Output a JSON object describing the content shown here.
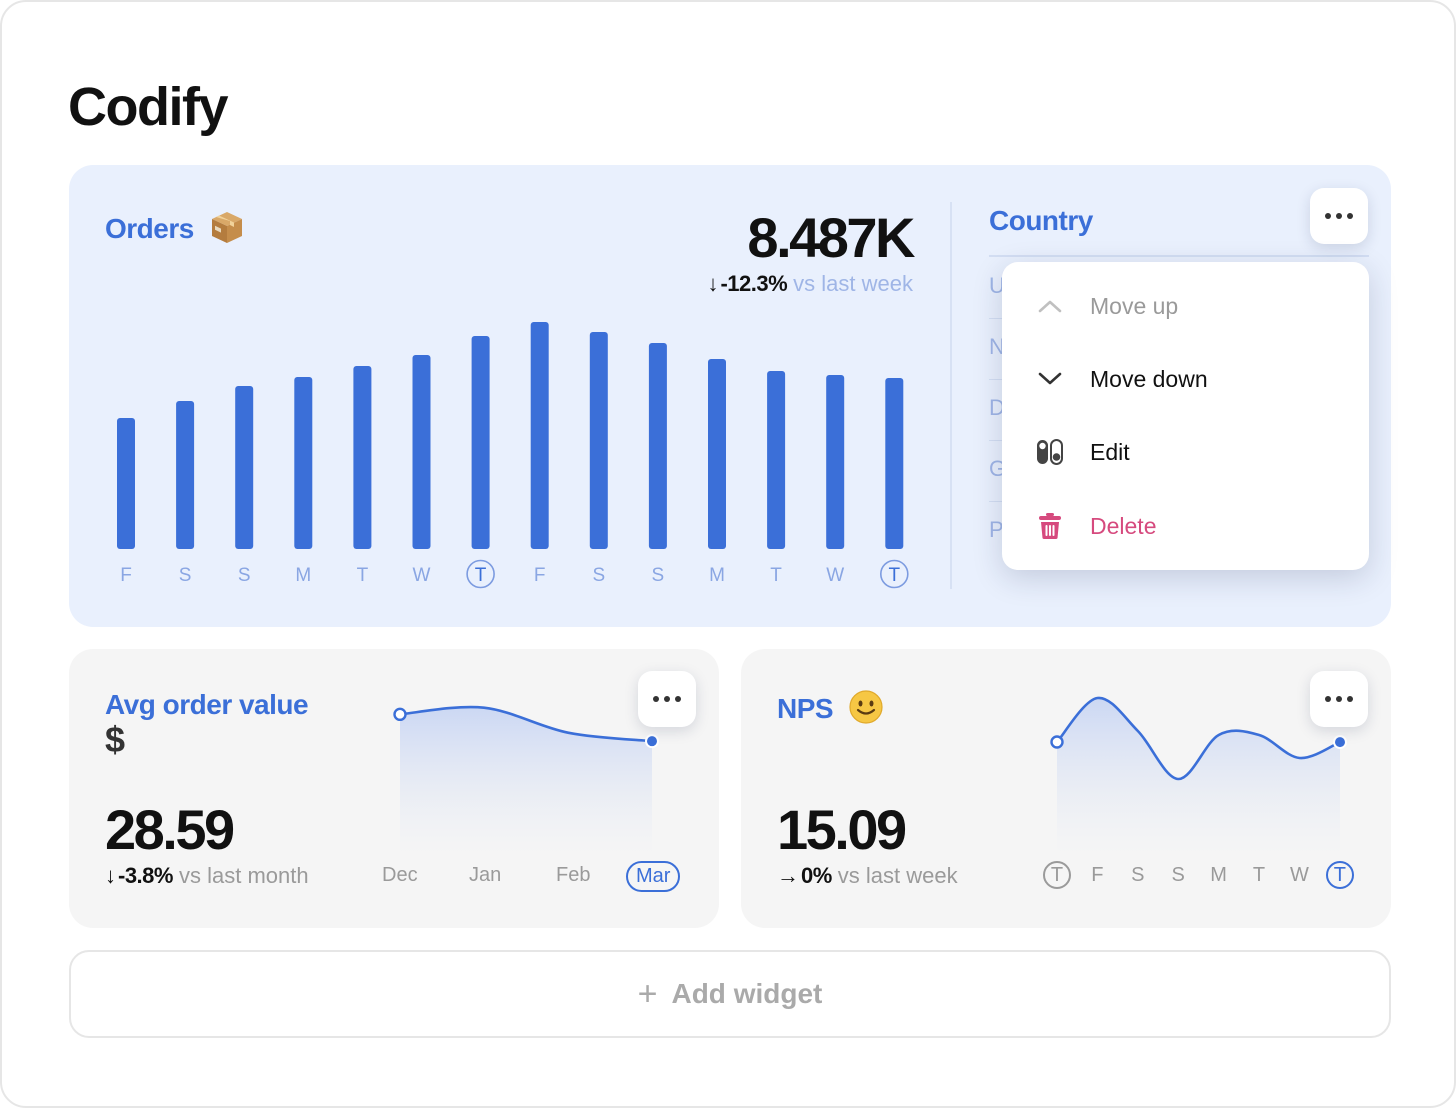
{
  "app": {
    "title": "Codify"
  },
  "orders": {
    "title": "Orders",
    "emoji_icon": "package-icon",
    "value": "8.487K",
    "delta_arrow": "↓",
    "delta": "-12.3%",
    "delta_suffix": "vs last week",
    "chart_data": {
      "type": "bar",
      "categories": [
        "F",
        "S",
        "S",
        "M",
        "T",
        "W",
        "T",
        "F",
        "S",
        "S",
        "M",
        "T",
        "W",
        "T"
      ],
      "highlighted_indices": [
        6,
        13
      ],
      "values": [
        131,
        148,
        163,
        172,
        183,
        194,
        213,
        227,
        217,
        206,
        190,
        178,
        174,
        171
      ],
      "title": "Orders",
      "xlabel": "",
      "ylabel": ""
    },
    "color": "#3b6fd8"
  },
  "country": {
    "title": "Country",
    "rows": [
      "U",
      "N",
      "D",
      "G",
      "P"
    ],
    "more_icon": "ellipsis-icon"
  },
  "menu": {
    "items": [
      {
        "label": "Move up",
        "icon": "chevron-up-icon",
        "state": "disabled"
      },
      {
        "label": "Move down",
        "icon": "chevron-down-icon",
        "state": "normal"
      },
      {
        "label": "Edit",
        "icon": "toggle-icon",
        "state": "normal"
      },
      {
        "label": "Delete",
        "icon": "trash-icon",
        "state": "danger"
      }
    ],
    "danger_color": "#d64a7e"
  },
  "avg_order": {
    "title": "Avg order value",
    "currency": "$",
    "value": "28.59",
    "delta_arrow": "↓",
    "delta": "-3.8%",
    "delta_suffix": "vs last month",
    "chart_data": {
      "type": "area",
      "categories": [
        "Dec",
        "Jan",
        "Feb",
        "Mar"
      ],
      "highlighted_indices": [
        3
      ],
      "values": [
        30.2,
        30.6,
        29.1,
        28.59
      ]
    }
  },
  "nps": {
    "title": "NPS",
    "emoji_icon": "smiley-icon",
    "value": "15.09",
    "delta_arrow": "→",
    "delta": "0%",
    "delta_suffix": "vs last week",
    "chart_data": {
      "type": "line",
      "categories": [
        "T",
        "F",
        "S",
        "S",
        "M",
        "T",
        "W",
        "T"
      ],
      "highlighted_indices": [
        0,
        7
      ],
      "values": [
        15.1,
        19.5,
        16.2,
        11.4,
        15.8,
        15.8,
        13.5,
        15.09
      ]
    }
  },
  "add_widget": {
    "label": "Add widget",
    "icon": "plus-icon"
  }
}
